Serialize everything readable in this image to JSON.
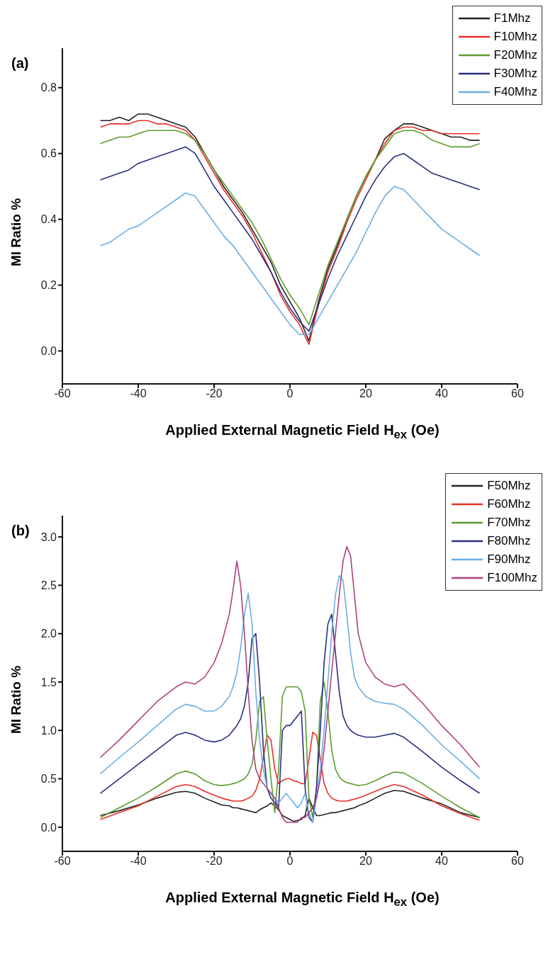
{
  "chart_data": [
    {
      "type": "line",
      "title": "(a)",
      "xlabel": "Applied External Magnetic Field H$_{ex}$ (Oe)",
      "ylabel": "MI Ratio %",
      "x": [
        -50,
        -47.5,
        -45,
        -42.5,
        -40,
        -37.5,
        -35,
        -32.5,
        -30,
        -27.5,
        -25,
        -22.5,
        -20,
        -17.5,
        -15,
        -12.5,
        -10,
        -7.5,
        -5,
        -2.5,
        0,
        2.5,
        5,
        7.5,
        10,
        12.5,
        15,
        17.5,
        20,
        22.5,
        25,
        27.5,
        30,
        32.5,
        35,
        37.5,
        40,
        42.5,
        45,
        47.5,
        50
      ],
      "series": [
        {
          "name": "F1Mhz",
          "color": "#222222",
          "values": [
            0.7,
            0.7,
            0.71,
            0.7,
            0.72,
            0.72,
            0.71,
            0.7,
            0.69,
            0.68,
            0.65,
            0.6,
            0.55,
            0.5,
            0.46,
            0.42,
            0.37,
            0.32,
            0.27,
            0.2,
            0.15,
            0.1,
            0.03,
            0.15,
            0.25,
            0.32,
            0.4,
            0.47,
            0.53,
            0.58,
            0.645,
            0.67,
            0.69,
            0.69,
            0.68,
            0.67,
            0.66,
            0.65,
            0.65,
            0.64,
            0.64
          ]
        },
        {
          "name": "F10Mhz",
          "color": "#e8302a",
          "values": [
            0.68,
            0.69,
            0.69,
            0.69,
            0.7,
            0.7,
            0.69,
            0.69,
            0.68,
            0.67,
            0.64,
            0.59,
            0.54,
            0.49,
            0.45,
            0.41,
            0.36,
            0.3,
            0.24,
            0.17,
            0.12,
            0.08,
            0.02,
            0.14,
            0.24,
            0.31,
            0.39,
            0.46,
            0.52,
            0.58,
            0.63,
            0.67,
            0.68,
            0.68,
            0.67,
            0.67,
            0.66,
            0.66,
            0.66,
            0.66,
            0.66
          ]
        },
        {
          "name": "F20Mhz",
          "color": "#5e9c2e",
          "values": [
            0.63,
            0.64,
            0.65,
            0.65,
            0.66,
            0.67,
            0.67,
            0.67,
            0.67,
            0.66,
            0.64,
            0.6,
            0.55,
            0.51,
            0.47,
            0.43,
            0.39,
            0.34,
            0.28,
            0.22,
            0.17,
            0.13,
            0.08,
            0.17,
            0.26,
            0.33,
            0.4,
            0.47,
            0.53,
            0.58,
            0.62,
            0.66,
            0.67,
            0.67,
            0.66,
            0.64,
            0.63,
            0.62,
            0.62,
            0.62,
            0.63
          ]
        },
        {
          "name": "F30Mhz",
          "color": "#2a2f80",
          "values": [
            0.52,
            0.53,
            0.54,
            0.55,
            0.57,
            0.58,
            0.59,
            0.6,
            0.61,
            0.62,
            0.6,
            0.55,
            0.5,
            0.46,
            0.42,
            0.38,
            0.34,
            0.29,
            0.24,
            0.18,
            0.13,
            0.09,
            0.06,
            0.14,
            0.22,
            0.29,
            0.35,
            0.41,
            0.47,
            0.52,
            0.56,
            0.59,
            0.6,
            0.58,
            0.56,
            0.54,
            0.53,
            0.52,
            0.51,
            0.5,
            0.49
          ]
        },
        {
          "name": "F40Mhz",
          "color": "#6aaee3",
          "values": [
            0.32,
            0.33,
            0.35,
            0.37,
            0.38,
            0.4,
            0.42,
            0.44,
            0.46,
            0.48,
            0.47,
            0.43,
            0.39,
            0.35,
            0.32,
            0.28,
            0.24,
            0.2,
            0.16,
            0.12,
            0.08,
            0.05,
            0.05,
            0.1,
            0.15,
            0.2,
            0.25,
            0.3,
            0.36,
            0.42,
            0.47,
            0.5,
            0.49,
            0.46,
            0.43,
            0.4,
            0.37,
            0.35,
            0.33,
            0.31,
            0.29
          ]
        }
      ],
      "xlim": [
        -60,
        60
      ],
      "xticks": [
        -60,
        -40,
        -20,
        0,
        20,
        40,
        60
      ],
      "ylim": [
        -0.1,
        0.92
      ],
      "yticks": [
        {
          "value": 0,
          "label": "0.0"
        },
        {
          "value": 0.2,
          "label": "0.2"
        },
        {
          "value": 0.4,
          "label": "0.4"
        },
        {
          "value": 0.6,
          "label": "0.6"
        },
        {
          "value": 0.8,
          "label": "0.8"
        }
      ],
      "grid": false,
      "legend": "top right",
      "marker": "none",
      "line_style": "solid"
    },
    {
      "type": "line",
      "title": "(b)",
      "xlabel": "Applied External Magnetic Field H$_{ex}$ (Oe)",
      "ylabel": "MI Ratio %",
      "x": [
        -50,
        -45,
        -40,
        -35,
        -30,
        -27.5,
        -25,
        -22.5,
        -20,
        -18,
        -16,
        -15,
        -14,
        -13,
        -12,
        -11,
        -10,
        -9,
        -8,
        -7,
        -6,
        -5,
        -4,
        -3,
        -2,
        -1,
        0,
        1,
        2,
        3,
        4,
        5,
        6,
        7,
        8,
        9,
        10,
        11,
        12,
        13,
        14,
        15,
        16,
        17,
        18,
        20,
        22.5,
        25,
        27.5,
        30,
        35,
        40,
        45,
        50
      ],
      "series": [
        {
          "name": "F50Mhz",
          "color": "#222222",
          "values": [
            0.12,
            0.17,
            0.23,
            0.3,
            0.36,
            0.37,
            0.35,
            0.3,
            0.26,
            0.23,
            0.22,
            0.2,
            0.2,
            0.19,
            0.18,
            0.17,
            0.16,
            0.15,
            0.18,
            0.2,
            0.22,
            0.25,
            0.22,
            0.18,
            0.12,
            0.1,
            0.08,
            0.06,
            0.07,
            0.08,
            0.12,
            0.3,
            0.2,
            0.12,
            0.12,
            0.13,
            0.14,
            0.15,
            0.15,
            0.16,
            0.17,
            0.18,
            0.19,
            0.2,
            0.22,
            0.25,
            0.3,
            0.35,
            0.38,
            0.37,
            0.3,
            0.24,
            0.15,
            0.1
          ]
        },
        {
          "name": "F60Mhz",
          "color": "#e8302a",
          "values": [
            0.08,
            0.15,
            0.22,
            0.32,
            0.42,
            0.44,
            0.42,
            0.37,
            0.33,
            0.3,
            0.28,
            0.27,
            0.27,
            0.27,
            0.28,
            0.3,
            0.32,
            0.38,
            0.5,
            0.72,
            0.95,
            0.9,
            0.6,
            0.45,
            0.48,
            0.5,
            0.5,
            0.48,
            0.47,
            0.45,
            0.45,
            0.7,
            0.98,
            0.95,
            0.7,
            0.45,
            0.35,
            0.3,
            0.28,
            0.27,
            0.27,
            0.27,
            0.28,
            0.29,
            0.3,
            0.33,
            0.37,
            0.41,
            0.44,
            0.42,
            0.33,
            0.22,
            0.14,
            0.07
          ]
        },
        {
          "name": "F70Mhz",
          "color": "#5e9c2e",
          "values": [
            0.1,
            0.2,
            0.3,
            0.42,
            0.55,
            0.58,
            0.55,
            0.48,
            0.44,
            0.43,
            0.44,
            0.45,
            0.46,
            0.48,
            0.5,
            0.55,
            0.65,
            0.9,
            1.3,
            1.35,
            0.9,
            0.5,
            0.15,
            0.6,
            1.35,
            1.45,
            1.45,
            1.45,
            1.45,
            1.4,
            1.2,
            0.3,
            0.1,
            0.4,
            1.3,
            1.5,
            1.2,
            0.8,
            0.6,
            0.52,
            0.48,
            0.46,
            0.45,
            0.44,
            0.43,
            0.44,
            0.48,
            0.53,
            0.57,
            0.56,
            0.45,
            0.32,
            0.2,
            0.1
          ]
        },
        {
          "name": "F80Mhz",
          "color": "#2a2f80",
          "values": [
            0.35,
            0.5,
            0.65,
            0.8,
            0.95,
            0.98,
            0.95,
            0.9,
            0.88,
            0.9,
            0.95,
            1.0,
            1.05,
            1.12,
            1.25,
            1.5,
            1.95,
            2.0,
            1.5,
            0.8,
            0.4,
            0.3,
            0.25,
            0.2,
            1.0,
            1.05,
            1.05,
            1.1,
            1.15,
            1.2,
            0.4,
            0.1,
            0.05,
            0.4,
            1.0,
            1.7,
            2.1,
            2.2,
            1.8,
            1.4,
            1.15,
            1.05,
            1.0,
            0.97,
            0.95,
            0.93,
            0.93,
            0.95,
            0.97,
            0.93,
            0.78,
            0.62,
            0.48,
            0.35
          ]
        },
        {
          "name": "F90Mhz",
          "color": "#6aaee3",
          "values": [
            0.55,
            0.72,
            0.88,
            1.05,
            1.22,
            1.27,
            1.25,
            1.2,
            1.2,
            1.25,
            1.35,
            1.45,
            1.6,
            1.85,
            2.2,
            2.42,
            2.1,
            1.4,
            0.9,
            0.6,
            0.4,
            0.35,
            0.3,
            0.25,
            0.3,
            0.35,
            0.3,
            0.25,
            0.2,
            0.25,
            0.35,
            0.15,
            0.05,
            0.3,
            0.6,
            1.0,
            1.5,
            2.0,
            2.4,
            2.6,
            2.55,
            2.2,
            1.8,
            1.55,
            1.45,
            1.35,
            1.3,
            1.28,
            1.27,
            1.22,
            1.05,
            0.85,
            0.68,
            0.5
          ]
        },
        {
          "name": "F100Mhz",
          "color": "#b0407e",
          "values": [
            0.72,
            0.9,
            1.1,
            1.3,
            1.45,
            1.5,
            1.48,
            1.55,
            1.7,
            1.9,
            2.2,
            2.45,
            2.75,
            2.5,
            2.0,
            1.4,
            0.9,
            0.6,
            0.5,
            0.45,
            0.4,
            0.35,
            0.3,
            0.2,
            0.1,
            0.05,
            0.05,
            0.05,
            0.05,
            0.1,
            0.1,
            0.15,
            0.2,
            0.3,
            0.5,
            0.8,
            1.2,
            1.6,
            2.0,
            2.4,
            2.75,
            2.9,
            2.8,
            2.4,
            2.0,
            1.7,
            1.55,
            1.48,
            1.45,
            1.48,
            1.28,
            1.05,
            0.85,
            0.62
          ]
        }
      ],
      "xlim": [
        -60,
        60
      ],
      "xticks": [
        -60,
        -40,
        -20,
        0,
        20,
        40,
        60
      ],
      "ylim": [
        -0.25,
        3.22
      ],
      "yticks": [
        {
          "value": 0,
          "label": "0.0"
        },
        {
          "value": 0.5,
          "label": "0.5"
        },
        {
          "value": 1,
          "label": "1.0"
        },
        {
          "value": 1.5,
          "label": "1.5"
        },
        {
          "value": 2,
          "label": "2.0"
        },
        {
          "value": 2.5,
          "label": "2.5"
        },
        {
          "value": 3,
          "label": "3.0"
        }
      ],
      "grid": false,
      "legend": "top right",
      "marker": "none",
      "line_style": "solid"
    }
  ]
}
